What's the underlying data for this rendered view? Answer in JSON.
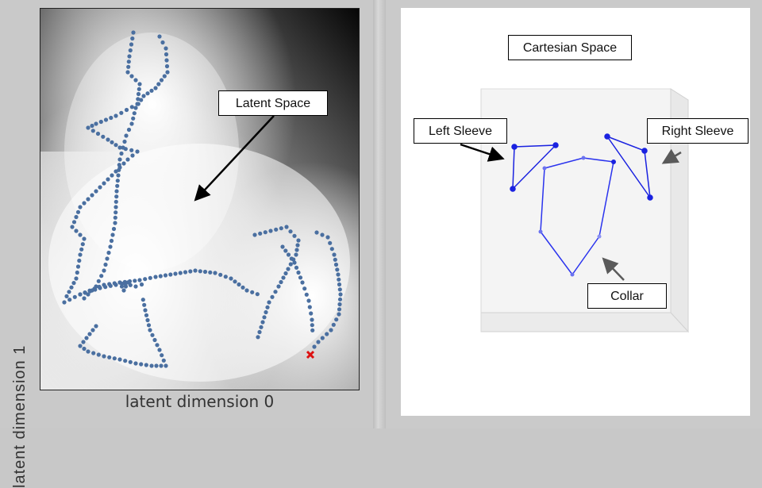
{
  "latent_panel": {
    "callout": "Latent Space",
    "xlabel": "latent dimension 0",
    "ylabel": "latent dimension 1",
    "point_color": "#4a6fa0",
    "marker_color": "#dd1111"
  },
  "cartesian_panel": {
    "title": "Cartesian Space",
    "labels": {
      "left_sleeve": "Left Sleeve",
      "right_sleeve": "Right Sleeve",
      "collar": "Collar"
    },
    "line_color": "#1a22e0"
  }
}
